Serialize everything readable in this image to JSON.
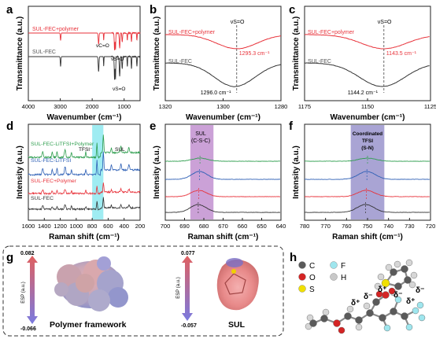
{
  "panels": {
    "a": {
      "letter": "a",
      "labels": [
        "SUL-FEC+polymer",
        "SUL-FEC"
      ],
      "annotations": [
        "νC=O",
        "νS=O",
        "νS=O"
      ]
    },
    "b": {
      "letter": "b",
      "labels": [
        "SUL-FEC+polymer",
        "SUL-FEC"
      ],
      "annotations": [
        "νS=O",
        "1295.3 cm⁻¹",
        "1296.0 cm⁻¹"
      ]
    },
    "c": {
      "letter": "c",
      "labels": [
        "SUL-FEC+polymer",
        "SUL-FEC"
      ],
      "annotations": [
        "νS=O",
        "1143.5 cm⁻¹",
        "1144.2 cm⁻¹"
      ]
    },
    "d": {
      "letter": "d",
      "labels": [
        "SUL-FEC-LiTFSI+Polymer",
        "SUL-FEC-LiTFSI",
        "SUL-FEC+Polymer",
        "SUL-FEC"
      ],
      "annotations": [
        "TFSI⁻",
        "SUL"
      ]
    },
    "e": {
      "letter": "e",
      "annotations": [
        "SUL",
        "(C-S-C)"
      ]
    },
    "f": {
      "letter": "f",
      "annotations": [
        "Coordinated",
        "TFSI",
        "(S-N)"
      ]
    }
  },
  "panel_g": {
    "letter": "g",
    "left_scale": {
      "max": "0.082",
      "min": "-0.066",
      "label": "ESP (a.u.)"
    },
    "right_scale": {
      "max": "0.077",
      "min": "-0.057",
      "label": "ESP (a.u.)"
    },
    "left_caption": "Polymer framework",
    "right_caption": "SUL"
  },
  "panel_h": {
    "letter": "h",
    "legend": [
      {
        "symbol": "C",
        "color": "#5a5a5a"
      },
      {
        "symbol": "F",
        "color": "#9fe6ee"
      },
      {
        "symbol": "O",
        "color": "#d42424"
      },
      {
        "symbol": "H",
        "color": "#c8c8c8"
      },
      {
        "symbol": "S",
        "color": "#f0e000"
      }
    ],
    "charges": [
      "δ⁺",
      "δ⁻",
      "δ⁺",
      "δ⁻",
      "δ⁺",
      "δ⁻"
    ]
  },
  "colors": {
    "red": "#e8323a",
    "black": "#333333",
    "green": "#2e9e4e",
    "blue": "#2d5fb5",
    "cyan_band": "#7fe6ee",
    "purple_band": "#b981c9",
    "indigo_band": "#8c86c6"
  },
  "chart_data": [
    {
      "type": "line",
      "panel": "a",
      "xlabel": "Wavenumber (cm⁻¹)",
      "ylabel": "Transmittance (a.u.)",
      "xlim": [
        4000,
        500
      ],
      "xticks": [
        4000,
        3000,
        2000,
        1000
      ],
      "series": [
        {
          "name": "SUL-FEC+polymer"
        },
        {
          "name": "SUL-FEC"
        }
      ]
    },
    {
      "type": "line",
      "panel": "b",
      "xlabel": "Wavenumber (cm⁻¹)",
      "ylabel": "Transmittance (a.u.)",
      "xlim": [
        1320,
        1280
      ],
      "xticks": [
        1320,
        1300,
        1280
      ],
      "series": [
        {
          "name": "SUL-FEC+polymer",
          "peak_x": 1295.3
        },
        {
          "name": "SUL-FEC",
          "peak_x": 1296.0
        }
      ]
    },
    {
      "type": "line",
      "panel": "c",
      "xlabel": "Wavenumber (cm⁻¹)",
      "ylabel": "Transmittance (a.u.)",
      "xlim": [
        1175,
        1125
      ],
      "xticks": [
        1175,
        1150,
        1125
      ],
      "series": [
        {
          "name": "SUL-FEC+polymer",
          "peak_x": 1143.5
        },
        {
          "name": "SUL-FEC",
          "peak_x": 1144.2
        }
      ]
    },
    {
      "type": "line",
      "panel": "d",
      "xlabel": "Raman shift (cm⁻¹)",
      "ylabel": "Intensity (a.u.)",
      "xlim": [
        1600,
        200
      ],
      "xticks": [
        1600,
        1400,
        1200,
        1000,
        800,
        600,
        400,
        200
      ],
      "band": [
        800,
        660
      ],
      "series": [
        {
          "name": "SUL-FEC-LiTFSI+Polymer"
        },
        {
          "name": "SUL-FEC-LiTFSI"
        },
        {
          "name": "SUL-FEC+Polymer"
        },
        {
          "name": "SUL-FEC"
        }
      ]
    },
    {
      "type": "line",
      "panel": "e",
      "xlabel": "Raman shift (cm⁻¹)",
      "ylabel": "Intensity (a.u.)",
      "xlim": [
        700,
        640
      ],
      "xticks": [
        700,
        690,
        680,
        670,
        660,
        650,
        640
      ],
      "band": [
        687,
        675
      ]
    },
    {
      "type": "line",
      "panel": "f",
      "xlabel": "Raman shift (cm⁻¹)",
      "ylabel": "Intensity (a.u.)",
      "xlim": [
        780,
        720
      ],
      "xticks": [
        780,
        770,
        760,
        750,
        740,
        730,
        720
      ],
      "band": [
        758,
        742
      ]
    }
  ]
}
